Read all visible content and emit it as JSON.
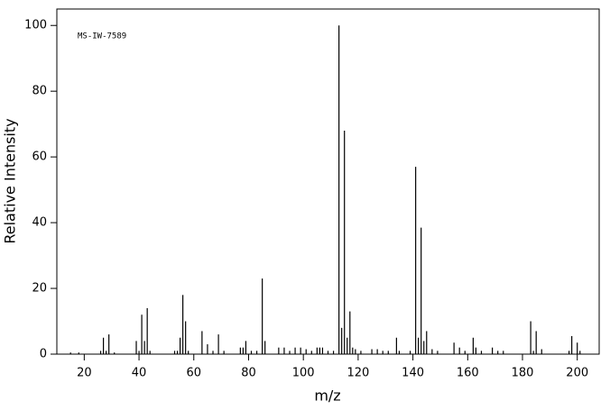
{
  "chart_data": {
    "type": "stick",
    "annotation": "MS-IW-7589",
    "xlabel": "m/z",
    "ylabel": "Relative Intensity",
    "color": "#000000",
    "x": [
      15,
      18,
      26,
      27,
      28,
      29,
      31,
      39,
      40,
      41,
      42,
      43,
      44,
      53,
      54,
      55,
      56,
      57,
      58,
      63,
      65,
      67,
      69,
      71,
      77,
      78,
      79,
      81,
      83,
      85,
      86,
      91,
      93,
      95,
      97,
      99,
      101,
      103,
      105,
      106,
      107,
      109,
      111,
      113,
      114,
      115,
      116,
      117,
      118,
      119,
      121,
      125,
      127,
      129,
      131,
      134,
      135,
      139,
      141,
      142,
      143,
      144,
      145,
      147,
      149,
      155,
      157,
      159,
      162,
      163,
      165,
      169,
      171,
      173,
      183,
      184,
      185,
      187,
      197,
      198,
      200,
      201
    ],
    "values": [
      0.5,
      0.5,
      1,
      5,
      1,
      6,
      0.5,
      4,
      1,
      12,
      4,
      14,
      1,
      1,
      1,
      5,
      18,
      10,
      1,
      7,
      3,
      1,
      6,
      1,
      2,
      2,
      4,
      1,
      1,
      23,
      4,
      2,
      2,
      1,
      2,
      2,
      1.5,
      1,
      2,
      2,
      2,
      1,
      1,
      100,
      8,
      68,
      5,
      13,
      2,
      1.5,
      1,
      1.5,
      1.5,
      1,
      1,
      5,
      1,
      1,
      57,
      5,
      38.5,
      4,
      7,
      1.5,
      1,
      3.5,
      2,
      1,
      5,
      2,
      1,
      2,
      1,
      1,
      10,
      1,
      7,
      1.5,
      1,
      5.5,
      3.5,
      1
    ],
    "xlim": [
      10,
      208
    ],
    "ylim": [
      0,
      105
    ],
    "xticks": [
      20,
      40,
      60,
      80,
      100,
      120,
      140,
      160,
      180,
      200
    ],
    "yticks": [
      0,
      20,
      40,
      60,
      80,
      100
    ]
  }
}
